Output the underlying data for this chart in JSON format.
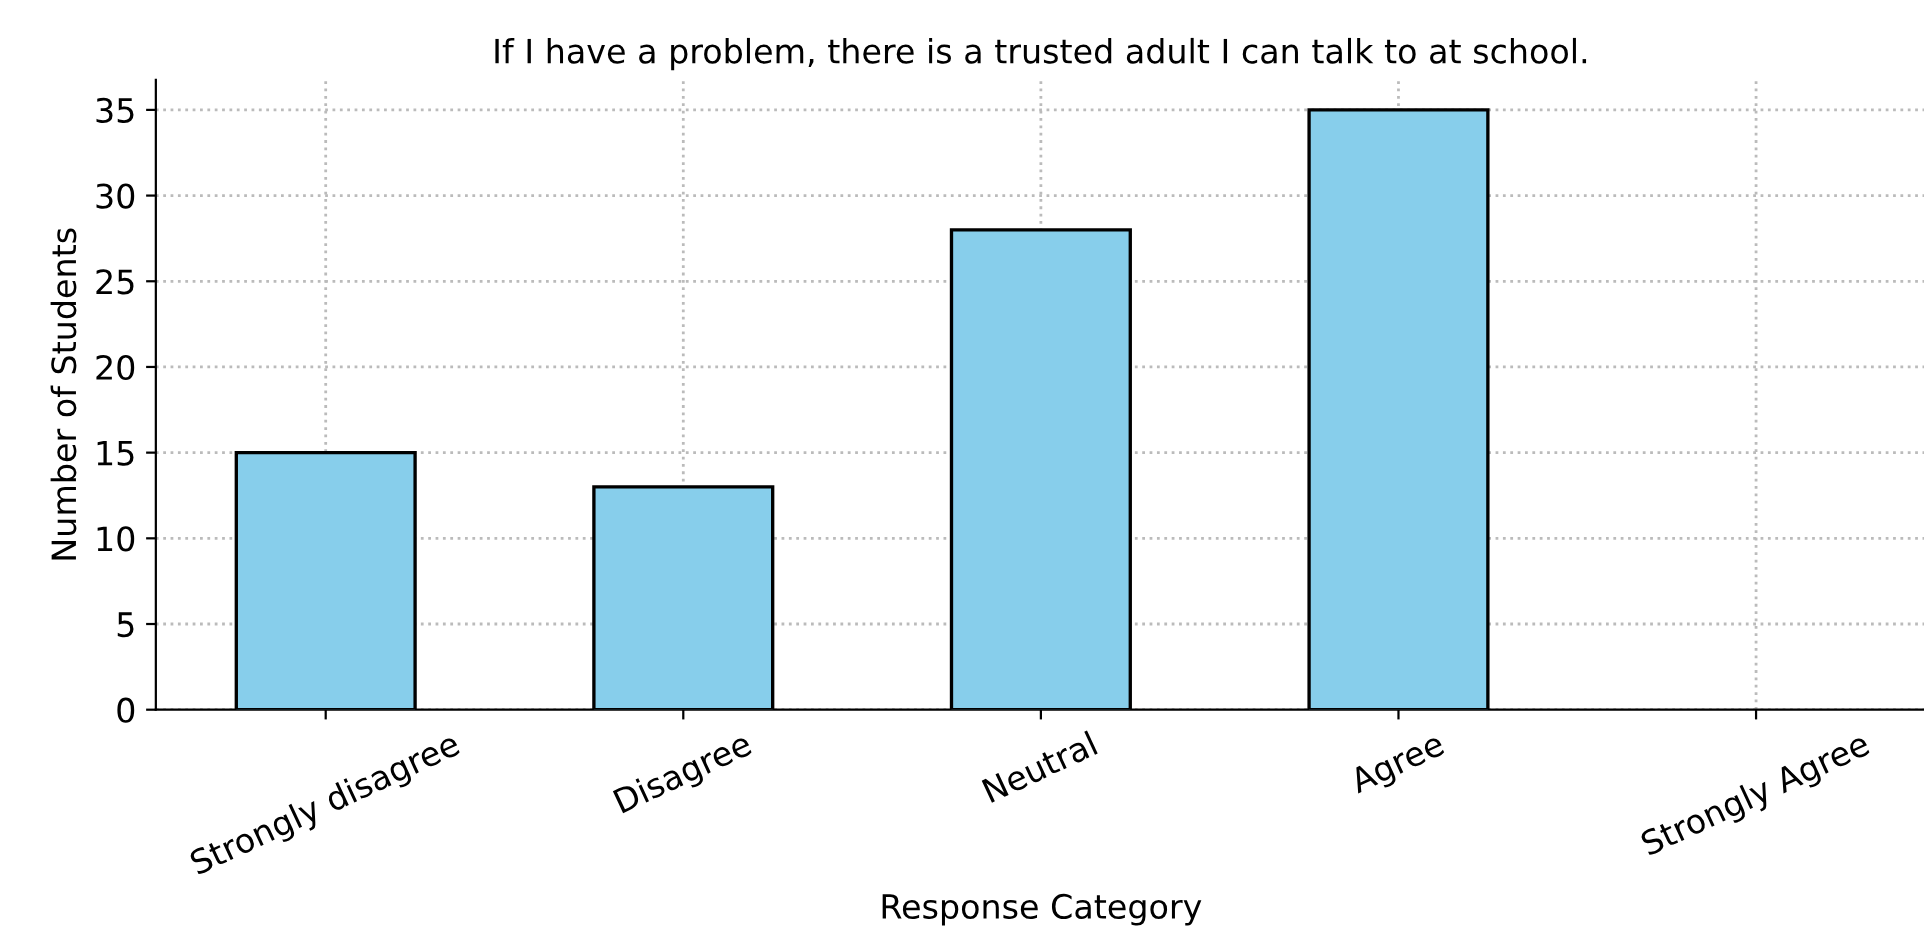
{
  "chart_data": {
    "type": "bar",
    "title": "If I have a problem, there is a trusted adult I can talk to at school.",
    "xlabel": "Response Category",
    "ylabel": "Number of Students",
    "categories": [
      "Strongly disagree",
      "Disagree",
      "Neutral",
      "Agree",
      "Strongly Agree"
    ],
    "values": [
      15,
      13,
      28,
      35,
      0
    ],
    "color": "#87ceeb",
    "ylim": [
      0,
      36.75
    ],
    "yticks": [
      0,
      5,
      10,
      15,
      20,
      25,
      30,
      35
    ],
    "grid": true
  }
}
